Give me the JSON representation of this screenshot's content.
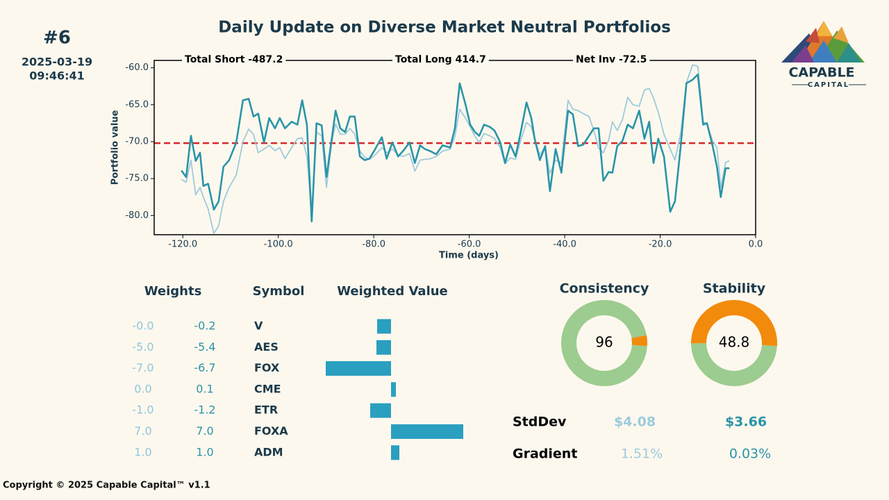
{
  "header": {
    "rank": "#6",
    "date": "2025-03-19",
    "time": "09:46:41",
    "title": "Daily Update on Diverse Market Neutral Portfolios"
  },
  "logo": {
    "name": "CAPABLE",
    "sub": "CAPITAL"
  },
  "chart_data": [
    {
      "type": "line",
      "annotations": [
        "Total Short -487.2",
        "Total Long 414.7",
        "Net Inv -72.5"
      ],
      "x_label": "Time (days)",
      "y_label": "Portfolio value",
      "x": [
        -120.3,
        -119.3,
        -118.3,
        -117.3,
        -116.4,
        -115.7,
        -114.7,
        -113.5,
        -112.5,
        -111.5,
        -110.3,
        -108.8,
        -107.4,
        -106.2,
        -105.2,
        -104.2,
        -103.0,
        -101.9,
        -100.7,
        -99.7,
        -98.6,
        -97.2,
        -96.0,
        -95.0,
        -94.0,
        -93.0,
        -92.0,
        -90.9,
        -89.9,
        -88.8,
        -88.0,
        -87.0,
        -86.0,
        -85.0,
        -84.0,
        -82.9,
        -81.9,
        -80.9,
        -79.7,
        -78.3,
        -77.3,
        -76.1,
        -74.9,
        -73.9,
        -72.5,
        -71.4,
        -70.3,
        -69.3,
        -68.1,
        -66.9,
        -65.6,
        -64.0,
        -63.0,
        -62.0,
        -60.8,
        -59.8,
        -58.8,
        -57.9,
        -56.9,
        -55.7,
        -54.7,
        -53.5,
        -52.5,
        -51.4,
        -50.3,
        -49.2,
        -48.0,
        -47.0,
        -46.3,
        -45.2,
        -44.1,
        -43.1,
        -41.9,
        -40.7,
        -39.3,
        -38.3,
        -37.2,
        -36.1,
        -34.9,
        -33.9,
        -32.9,
        -31.9,
        -30.8,
        -30.0,
        -29.0,
        -27.9,
        -26.8,
        -25.7,
        -24.4,
        -23.3,
        -22.3,
        -21.4,
        -20.4,
        -19.2,
        -17.9,
        -16.9,
        -15.7,
        -14.5,
        -13.2,
        -12.1,
        -11.0,
        -10.2,
        -9.0,
        -8.1,
        -7.3,
        -6.3,
        -5.5
      ],
      "series": [
        {
          "color": "#9ccbdc",
          "values": [
            -75.1,
            -75.5,
            -72.5,
            -77.2,
            -76.2,
            -77.5,
            -79.1,
            -82.4,
            -81.4,
            -78.1,
            -76.2,
            -74.5,
            -70.0,
            -68.3,
            -69.0,
            -71.5,
            -71.0,
            -70.5,
            -71.2,
            -70.8,
            -72.3,
            -70.8,
            -69.6,
            -69.5,
            -72.0,
            -80.0,
            -68.7,
            -69.2,
            -76.2,
            -70.0,
            -67.6,
            -69.0,
            -69.0,
            -68.2,
            -69.0,
            -71.3,
            -72.1,
            -72.4,
            -71.8,
            -70.8,
            -71.5,
            -71.0,
            -71.8,
            -72.0,
            -71.6,
            -74.0,
            -72.5,
            -72.4,
            -72.3,
            -72.0,
            -71.3,
            -71.0,
            -69.3,
            -65.6,
            -66.8,
            -68.0,
            -69.3,
            -70.1,
            -68.9,
            -69.2,
            -69.6,
            -70.8,
            -73.0,
            -72.2,
            -72.4,
            -69.8,
            -67.4,
            -68.0,
            -69.6,
            -71.8,
            -70.7,
            -74.3,
            -72.5,
            -72.9,
            -64.4,
            -65.6,
            -65.8,
            -66.2,
            -66.6,
            -68.5,
            -70.9,
            -71.5,
            -69.8,
            -67.3,
            -68.5,
            -67.0,
            -64.0,
            -65.0,
            -65.2,
            -63.0,
            -62.8,
            -64.1,
            -66.0,
            -69.0,
            -71.0,
            -72.5,
            -68.8,
            -62.0,
            -59.6,
            -59.8,
            -67.3,
            -67.6,
            -69.9,
            -70.8,
            -76.2,
            -72.8,
            -72.6
          ]
        },
        {
          "color": "#2a94a8",
          "values": [
            -73.9,
            -74.8,
            -69.2,
            -72.6,
            -71.5,
            -76.0,
            -75.7,
            -79.2,
            -78.1,
            -73.4,
            -72.5,
            -70.1,
            -64.4,
            -64.2,
            -66.6,
            -66.2,
            -70.1,
            -66.8,
            -68.2,
            -66.8,
            -68.2,
            -67.3,
            -67.7,
            -64.4,
            -67.7,
            -80.8,
            -67.5,
            -67.8,
            -74.8,
            -69.6,
            -65.8,
            -68.2,
            -68.7,
            -66.6,
            -66.6,
            -72.0,
            -72.5,
            -72.3,
            -71.0,
            -69.4,
            -72.3,
            -70.1,
            -72.0,
            -71.3,
            -70.1,
            -72.9,
            -70.5,
            -71.0,
            -71.3,
            -71.7,
            -70.5,
            -70.8,
            -68.2,
            -62.1,
            -64.9,
            -67.7,
            -68.7,
            -69.2,
            -67.7,
            -68.0,
            -68.5,
            -70.1,
            -72.9,
            -70.4,
            -72.0,
            -68.7,
            -64.7,
            -66.8,
            -69.6,
            -72.5,
            -70.6,
            -76.7,
            -71.0,
            -74.2,
            -65.8,
            -66.3,
            -70.6,
            -70.4,
            -69.2,
            -68.2,
            -68.2,
            -75.3,
            -74.1,
            -74.2,
            -70.6,
            -69.9,
            -67.7,
            -68.2,
            -65.8,
            -69.6,
            -67.3,
            -72.9,
            -69.6,
            -72.0,
            -79.5,
            -78.1,
            -70.6,
            -62.1,
            -61.6,
            -60.9,
            -67.7,
            -67.5,
            -70.6,
            -73.4,
            -77.5,
            -73.6,
            -73.6
          ]
        }
      ],
      "hline": -70.2,
      "hline_color": "#d62728",
      "xlim": [
        -126,
        0
      ],
      "ylim": [
        -82.6,
        -59
      ],
      "xticks": [
        {
          "value": -120,
          "label": "-120.0"
        },
        {
          "value": -100,
          "label": "-100.0"
        },
        {
          "value": -80,
          "label": "-80.0"
        },
        {
          "value": -60,
          "label": "-60.0"
        },
        {
          "value": -40,
          "label": "-40.0"
        },
        {
          "value": -20,
          "label": "-20.0"
        },
        {
          "value": 0,
          "label": "0.0"
        }
      ],
      "yticks": [
        {
          "value": -80,
          "label": "-80.0"
        },
        {
          "value": -75,
          "label": "-75.0"
        },
        {
          "value": -70,
          "label": "-70.0"
        },
        {
          "value": -65,
          "label": "-65.0"
        },
        {
          "value": -60,
          "label": "-60.0"
        }
      ]
    },
    {
      "type": "hbar",
      "values": [
        -2.0,
        -2.1,
        -9.4,
        0.7,
        -3.0,
        10.4,
        1.2
      ],
      "color": "#2a9fbf"
    },
    {
      "type": "donut",
      "title": "Consistency",
      "values": [
        96,
        4
      ],
      "colors": [
        "#9ccc8f",
        "#f28a0c"
      ]
    },
    {
      "type": "donut",
      "title": "Stability",
      "values": [
        48.8,
        51.2
      ],
      "colors": [
        "#9ccc8f",
        "#f28a0c"
      ]
    }
  ],
  "weights_table": {
    "headers": [
      "Weights",
      "Symbol",
      "Weighted Value"
    ],
    "rows": [
      [
        "-0.0",
        "-0.2",
        "V"
      ],
      [
        "-5.0",
        "-5.4",
        "AES"
      ],
      [
        "-7.0",
        "-6.7",
        "FOX"
      ],
      [
        "0.0",
        "0.1",
        "CME"
      ],
      [
        "-1.0",
        "-1.2",
        "ETR"
      ],
      [
        "7.0",
        "7.0",
        "FOXA"
      ],
      [
        "1.0",
        "1.0",
        "ADM"
      ]
    ]
  },
  "stats": {
    "rows": [
      [
        "StdDev",
        "$4.08",
        "$3.66"
      ],
      [
        "Gradient",
        "1.51%",
        "0.03%"
      ]
    ]
  },
  "footer": "Copyright © 2025 Capable Capital™  v1.1"
}
